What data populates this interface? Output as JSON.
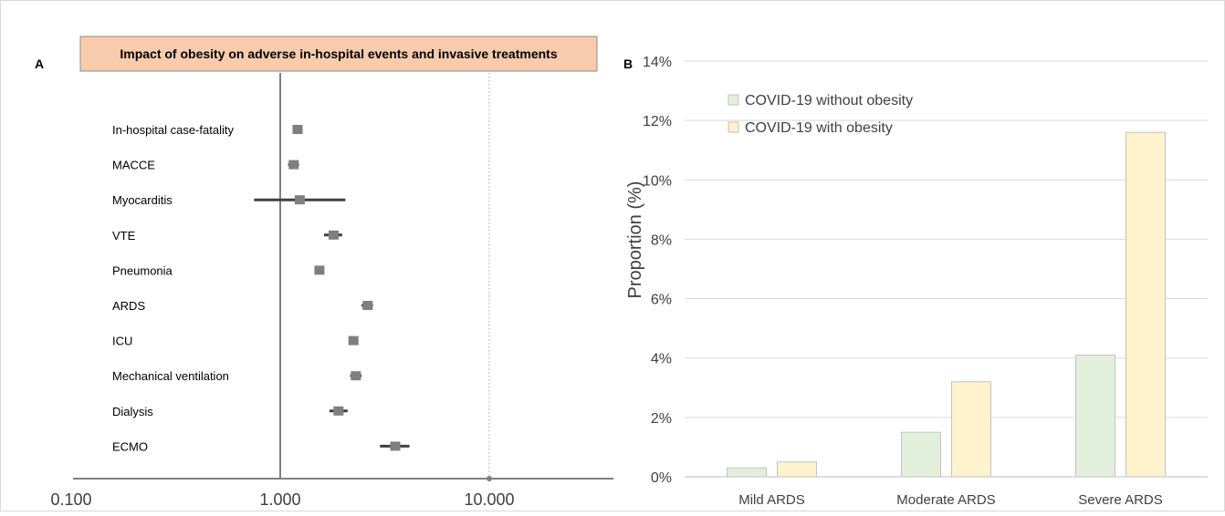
{
  "figure": {
    "panel_a_letter": "A",
    "panel_b_letter": "B"
  },
  "chart_data": [
    {
      "type": "forest",
      "title": "Impact of obesity on adverse in-hospital events and invasive treatments",
      "x_scale": "log",
      "xlim": [
        0.1,
        30
      ],
      "x_ticks": [
        "0.100",
        "1.000",
        "10.000"
      ],
      "x_tick_values": [
        0.1,
        1,
        10
      ],
      "reference_line": 1,
      "rows": [
        {
          "label": "In-hospital case-fatality",
          "estimate": 1.21,
          "lower": 1.15,
          "upper": 1.28
        },
        {
          "label": "MACCE",
          "estimate": 1.16,
          "lower": 1.09,
          "upper": 1.23
        },
        {
          "label": "Myocarditis",
          "estimate": 1.24,
          "lower": 0.75,
          "upper": 2.05
        },
        {
          "label": "VTE",
          "estimate": 1.8,
          "lower": 1.62,
          "upper": 1.98
        },
        {
          "label": "Pneumonia",
          "estimate": 1.54,
          "lower": 1.47,
          "upper": 1.62
        },
        {
          "label": "ARDS",
          "estimate": 2.62,
          "lower": 2.45,
          "upper": 2.78
        },
        {
          "label": "ICU",
          "estimate": 2.24,
          "lower": 2.14,
          "upper": 2.33
        },
        {
          "label": "Mechanical ventilation",
          "estimate": 2.3,
          "lower": 2.16,
          "upper": 2.45
        },
        {
          "label": "Dialysis",
          "estimate": 1.9,
          "lower": 1.72,
          "upper": 2.1
        },
        {
          "label": "ECMO",
          "estimate": 3.55,
          "lower": 3.0,
          "upper": 4.15
        }
      ]
    },
    {
      "type": "bar",
      "categories": [
        "Mild ARDS",
        "Moderate ARDS",
        "Severe ARDS"
      ],
      "series": [
        {
          "name": "COVID-19 without obesity",
          "color": "#e2efda",
          "values": [
            0.3,
            1.5,
            4.1
          ]
        },
        {
          "name": "COVID-19 with obesity",
          "color": "#fff2cc",
          "values": [
            0.5,
            3.2,
            11.6
          ]
        }
      ],
      "ylabel": "Proportion (%)",
      "ylim": [
        0,
        14
      ],
      "y_ticks": [
        "0%",
        "2%",
        "4%",
        "6%",
        "8%",
        "10%",
        "12%",
        "14%"
      ],
      "y_tick_values": [
        0,
        2,
        4,
        6,
        8,
        10,
        12,
        14
      ],
      "grid": true,
      "legend_position": "top-left"
    }
  ],
  "colors": {
    "title_box_fill": "#f8cbad",
    "title_box_stroke": "#8c8c8c",
    "marker": "#7f7f7f",
    "ci_line": "#404040",
    "axis": "#7f7f7f",
    "ref_line": "#7f7f7f",
    "grid": "#d9d9d9",
    "bar_stroke": "#c3c3c3"
  }
}
